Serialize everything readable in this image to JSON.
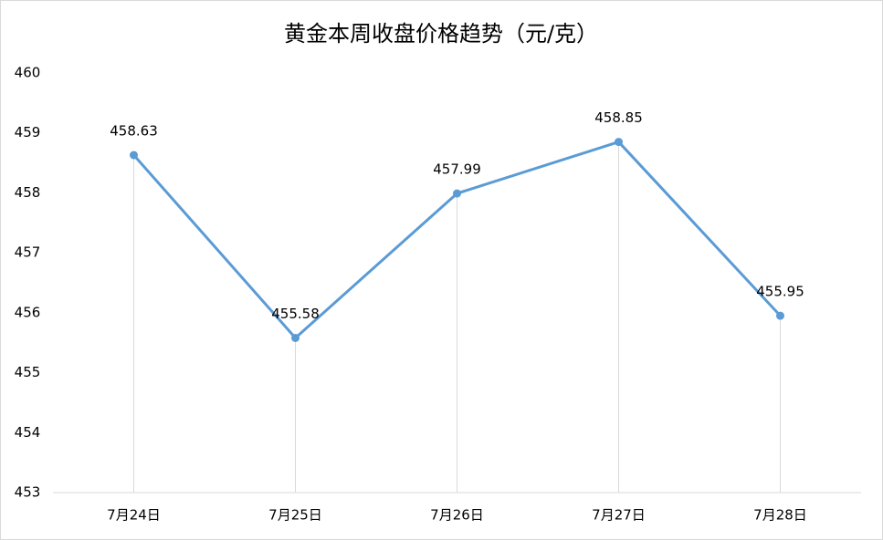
{
  "chart_data": {
    "type": "line",
    "title": "黄金本周收盘价格趋势（元/克）",
    "categories": [
      "7月24日",
      "7月25日",
      "7月26日",
      "7月27日",
      "7月28日"
    ],
    "values": [
      458.63,
      455.58,
      457.99,
      458.85,
      455.95
    ],
    "color": "#5b9bd5",
    "ylim": [
      453,
      460
    ],
    "yticks": [
      453,
      454,
      455,
      456,
      457,
      458,
      459,
      460
    ],
    "drop_lines": true,
    "data_labels": true
  }
}
